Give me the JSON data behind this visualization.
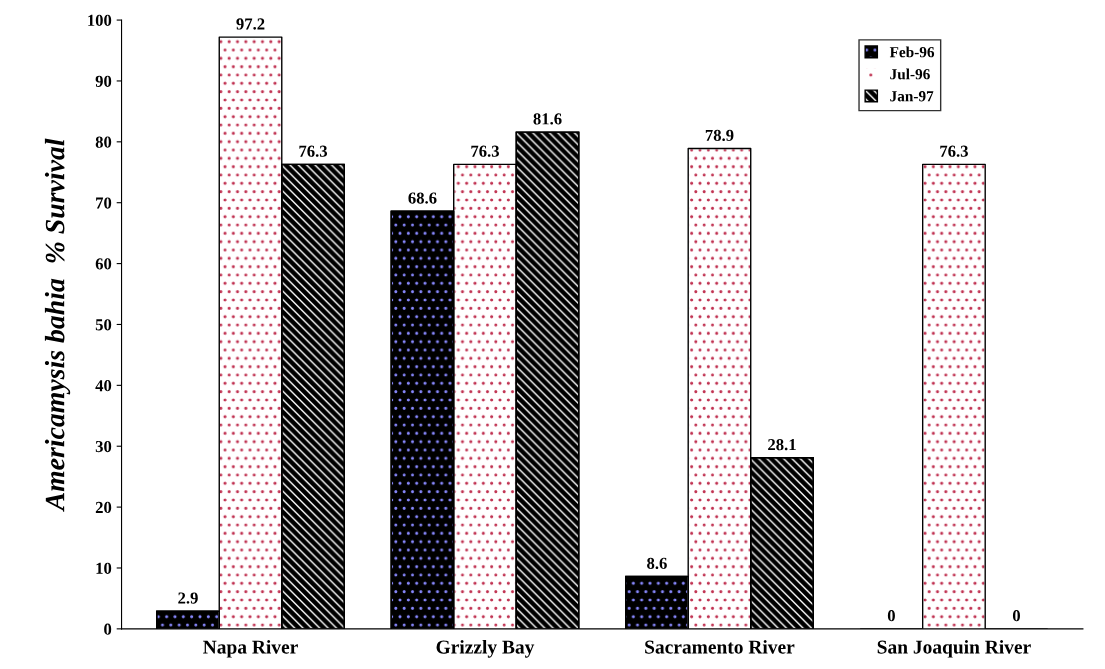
{
  "chart_data": {
    "type": "bar",
    "ylabel": "Americamysis bahia  % Survival",
    "categories": [
      "Napa River",
      "Grizzly Bay",
      "Sacramento River",
      "San Joaquin River"
    ],
    "series": [
      {
        "name": "Feb-96",
        "color": "#000000",
        "values": [
          2.9,
          68.6,
          8.6,
          0
        ]
      },
      {
        "name": "Jul-96",
        "color": "#ffffff",
        "values": [
          97.2,
          76.3,
          78.9,
          76.3
        ]
      },
      {
        "name": "Jan-97",
        "color": "#000000",
        "values": [
          76.3,
          81.6,
          28.1,
          0
        ]
      }
    ],
    "ylim": [
      0,
      100
    ],
    "yticks": [
      0,
      10,
      20,
      30,
      40,
      50,
      60,
      70,
      80,
      90,
      100
    ],
    "data_labels": true,
    "legend": "top right",
    "grid": false
  }
}
